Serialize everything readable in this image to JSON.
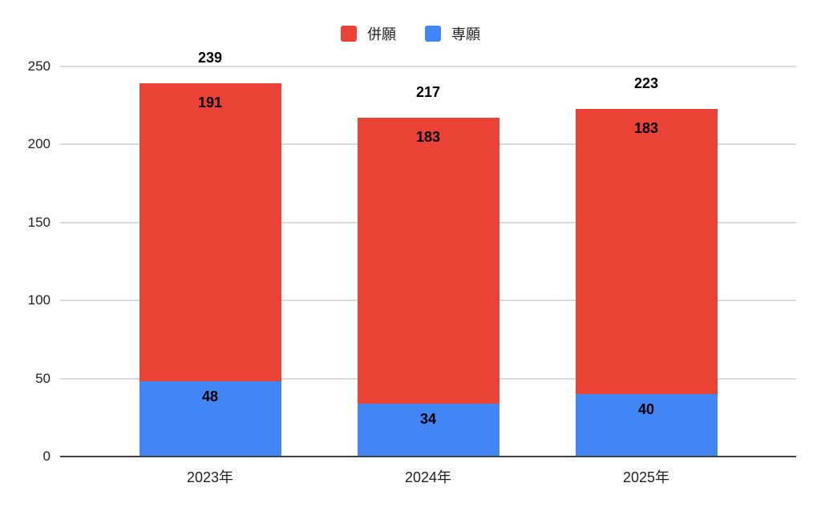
{
  "chart_data": {
    "type": "bar",
    "stacked": true,
    "title": "",
    "xlabel": "",
    "ylabel": "",
    "categories": [
      "2023年",
      "2024年",
      "2025年"
    ],
    "series": [
      {
        "name": "専願",
        "color": "#4285F4",
        "values": [
          48,
          34,
          40
        ]
      },
      {
        "name": "併願",
        "color": "#EA4335",
        "values": [
          191,
          183,
          183
        ]
      }
    ],
    "totals": [
      239,
      217,
      223
    ],
    "legend": [
      {
        "label": "併願",
        "color": "#EA4335"
      },
      {
        "label": "専願",
        "color": "#4285F4"
      }
    ],
    "legend_position": "top",
    "yticks": [
      0,
      50,
      100,
      150,
      200,
      250
    ],
    "ylim": [
      0,
      250
    ],
    "grid": true,
    "background_color": "#ffffff",
    "gridline_color": "#dadada",
    "axis_line_color": "#424242",
    "value_label_color": "#000000"
  }
}
